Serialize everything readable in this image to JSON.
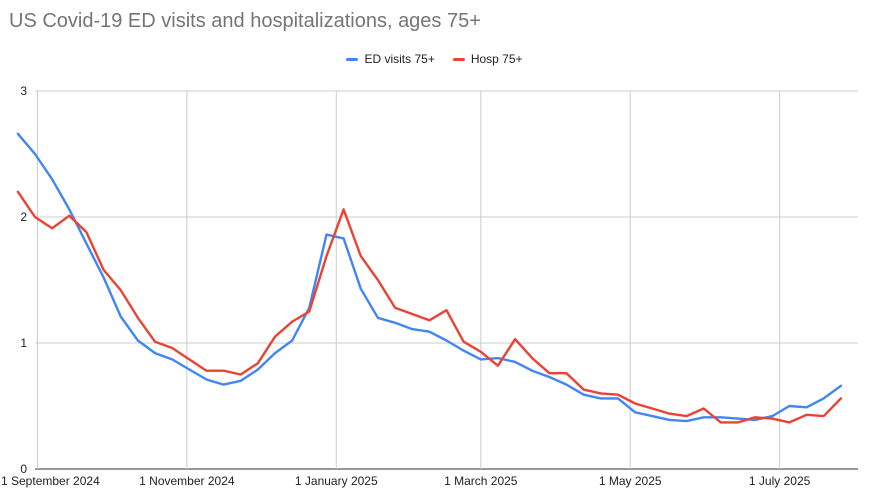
{
  "chart_data": {
    "type": "line",
    "title": "US Covid-19 ED visits and hospitalizations, ages 75+",
    "xlabel": "",
    "ylabel": "",
    "ylim": [
      0,
      3
    ],
    "yticks": [
      0,
      1,
      2,
      3
    ],
    "xlim": [
      "2024-08-31",
      "2025-08-02"
    ],
    "xticks": [
      {
        "date": "2024-09-01",
        "label": "1 September 2024"
      },
      {
        "date": "2024-11-01",
        "label": "1 November 2024"
      },
      {
        "date": "2025-01-01",
        "label": "1 January 2025"
      },
      {
        "date": "2025-03-01",
        "label": "1 March 2025"
      },
      {
        "date": "2025-05-01",
        "label": "1 May 2025"
      },
      {
        "date": "2025-07-01",
        "label": "1 July 2025"
      }
    ],
    "grid": true,
    "legend_position": "top",
    "series": [
      {
        "name": "ED visits 75+",
        "color": "#4285f4",
        "x": [
          "2024-08-24",
          "2024-08-31",
          "2024-09-07",
          "2024-09-14",
          "2024-09-21",
          "2024-09-28",
          "2024-10-05",
          "2024-10-12",
          "2024-10-19",
          "2024-10-26",
          "2024-11-02",
          "2024-11-09",
          "2024-11-16",
          "2024-11-23",
          "2024-11-30",
          "2024-12-07",
          "2024-12-14",
          "2024-12-21",
          "2024-12-28",
          "2025-01-04",
          "2025-01-11",
          "2025-01-18",
          "2025-01-25",
          "2025-02-01",
          "2025-02-08",
          "2025-02-15",
          "2025-02-22",
          "2025-03-01",
          "2025-03-08",
          "2025-03-15",
          "2025-03-22",
          "2025-03-29",
          "2025-04-05",
          "2025-04-12",
          "2025-04-19",
          "2025-04-26",
          "2025-05-03",
          "2025-05-10",
          "2025-05-17",
          "2025-05-24",
          "2025-05-31",
          "2025-06-07",
          "2025-06-14",
          "2025-06-21",
          "2025-06-28",
          "2025-07-05",
          "2025-07-12",
          "2025-07-19",
          "2025-07-26"
        ],
        "values": [
          2.66,
          2.5,
          2.3,
          2.06,
          1.79,
          1.52,
          1.21,
          1.02,
          0.92,
          0.87,
          0.79,
          0.71,
          0.67,
          0.7,
          0.79,
          0.92,
          1.02,
          1.28,
          1.86,
          1.83,
          1.43,
          1.2,
          1.16,
          1.11,
          1.09,
          1.02,
          0.94,
          0.87,
          0.88,
          0.85,
          0.78,
          0.73,
          0.67,
          0.59,
          0.56,
          0.56,
          0.45,
          0.42,
          0.39,
          0.38,
          0.41,
          0.41,
          0.4,
          0.39,
          0.42,
          0.5,
          0.49,
          0.56,
          0.66
        ]
      },
      {
        "name": "Hosp 75+",
        "color": "#ea4335",
        "x": [
          "2024-08-24",
          "2024-08-31",
          "2024-09-07",
          "2024-09-14",
          "2024-09-21",
          "2024-09-28",
          "2024-10-05",
          "2024-10-12",
          "2024-10-19",
          "2024-10-26",
          "2024-11-02",
          "2024-11-09",
          "2024-11-16",
          "2024-11-23",
          "2024-11-30",
          "2024-12-07",
          "2024-12-14",
          "2024-12-21",
          "2024-12-28",
          "2025-01-04",
          "2025-01-11",
          "2025-01-18",
          "2025-01-25",
          "2025-02-01",
          "2025-02-08",
          "2025-02-15",
          "2025-02-22",
          "2025-03-01",
          "2025-03-08",
          "2025-03-15",
          "2025-03-22",
          "2025-03-29",
          "2025-04-05",
          "2025-04-12",
          "2025-04-19",
          "2025-04-26",
          "2025-05-03",
          "2025-05-10",
          "2025-05-17",
          "2025-05-24",
          "2025-05-31",
          "2025-06-07",
          "2025-06-14",
          "2025-06-21",
          "2025-06-28",
          "2025-07-05",
          "2025-07-12",
          "2025-07-19",
          "2025-07-26"
        ],
        "values": [
          2.2,
          2.0,
          1.91,
          2.01,
          1.88,
          1.58,
          1.42,
          1.2,
          1.01,
          0.96,
          0.87,
          0.78,
          0.78,
          0.75,
          0.84,
          1.05,
          1.17,
          1.25,
          1.69,
          2.06,
          1.69,
          1.5,
          1.28,
          1.23,
          1.18,
          1.26,
          1.01,
          0.93,
          0.82,
          1.03,
          0.88,
          0.76,
          0.76,
          0.63,
          0.6,
          0.59,
          0.52,
          0.48,
          0.44,
          0.42,
          0.48,
          0.37,
          0.37,
          0.41,
          0.4,
          0.37,
          0.43,
          0.42,
          0.56
        ]
      }
    ]
  }
}
